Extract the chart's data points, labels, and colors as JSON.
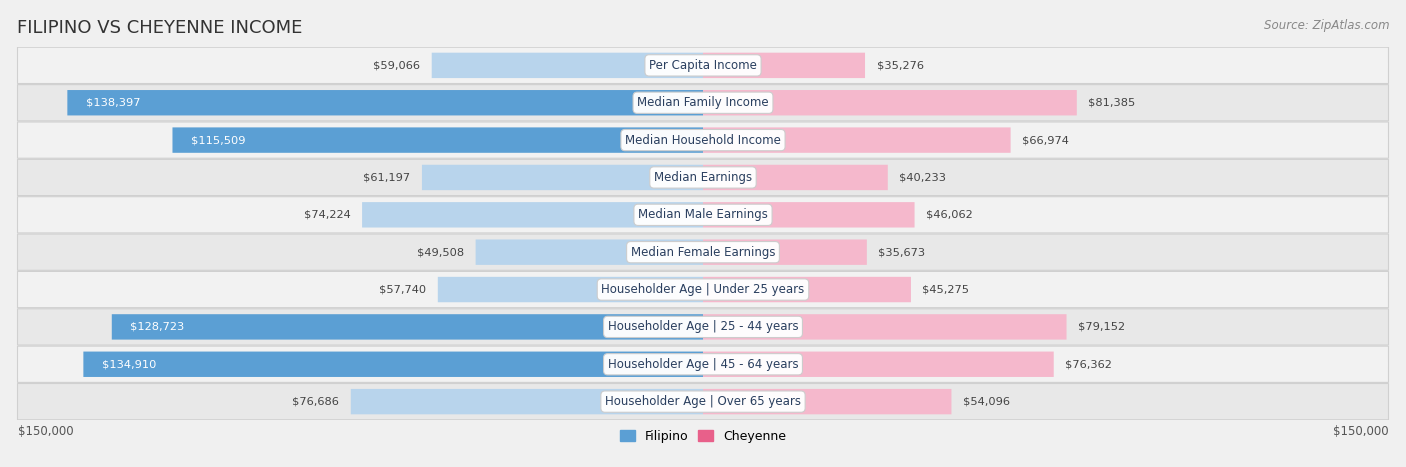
{
  "title": "FILIPINO VS CHEYENNE INCOME",
  "source": "Source: ZipAtlas.com",
  "categories": [
    "Per Capita Income",
    "Median Family Income",
    "Median Household Income",
    "Median Earnings",
    "Median Male Earnings",
    "Median Female Earnings",
    "Householder Age | Under 25 years",
    "Householder Age | 25 - 44 years",
    "Householder Age | 45 - 64 years",
    "Householder Age | Over 65 years"
  ],
  "filipino_values": [
    59066,
    138397,
    115509,
    61197,
    74224,
    49508,
    57740,
    128723,
    134910,
    76686
  ],
  "cheyenne_values": [
    35276,
    81385,
    66974,
    40233,
    46062,
    35673,
    45275,
    79152,
    76362,
    54096
  ],
  "filipino_labels": [
    "$59,066",
    "$138,397",
    "$115,509",
    "$61,197",
    "$74,224",
    "$49,508",
    "$57,740",
    "$128,723",
    "$134,910",
    "$76,686"
  ],
  "cheyenne_labels": [
    "$35,276",
    "$81,385",
    "$66,974",
    "$40,233",
    "$46,062",
    "$35,673",
    "$45,275",
    "$79,152",
    "$76,362",
    "$54,096"
  ],
  "filipino_color_light": "#b8d4ec",
  "filipino_color_dark": "#5b9fd4",
  "cheyenne_color_light": "#f5b8cc",
  "cheyenne_color_dark": "#e8608a",
  "max_value": 150000,
  "x_axis_label_left": "$150,000",
  "x_axis_label_right": "$150,000",
  "legend_filipino": "Filipino",
  "legend_cheyenne": "Cheyenne",
  "bg_color": "#f0f0f0",
  "row_bg_even": "#f8f8f8",
  "row_bg_odd": "#ebebeb",
  "title_fontsize": 13,
  "label_fontsize": 9,
  "dark_threshold": 100000
}
